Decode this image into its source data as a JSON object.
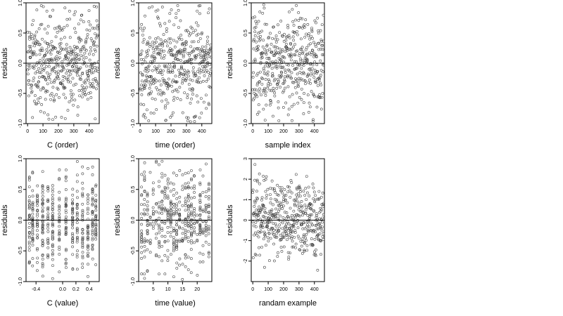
{
  "chart_data": [
    {
      "type": "scatter",
      "xlabel": "C (order)",
      "ylabel": "residuals",
      "xlim": [
        -10,
        465
      ],
      "ylim": [
        -1.0,
        1.0
      ],
      "xticks": [
        0,
        100,
        200,
        300,
        400
      ],
      "yticks": [
        -1.0,
        -0.5,
        0.0,
        0.5,
        1.0
      ],
      "ytick_labels": [
        "-1.0",
        "-0.5",
        "0.0",
        "0.5",
        "1.0"
      ],
      "hline": 0,
      "points": {
        "n": 460,
        "x": [
          0,
          460
        ],
        "pattern": "index",
        "seed": 11,
        "ampY": 0.42
      }
    },
    {
      "type": "scatter",
      "xlabel": "time (order)",
      "ylabel": "residuals",
      "xlim": [
        -10,
        465
      ],
      "ylim": [
        -1.0,
        1.0
      ],
      "xticks": [
        0,
        100,
        200,
        300,
        400
      ],
      "yticks": [
        -1.0,
        -0.5,
        0.0,
        0.5,
        1.0
      ],
      "ytick_labels": [
        "-1.0",
        "-0.5",
        "0.0",
        "0.5",
        "1.0"
      ],
      "hline": 0,
      "points": {
        "n": 460,
        "x": [
          0,
          460
        ],
        "pattern": "index",
        "seed": 23,
        "ampY": 0.42
      }
    },
    {
      "type": "scatter",
      "xlabel": "sample index",
      "ylabel": "residuals",
      "xlim": [
        -10,
        465
      ],
      "ylim": [
        -1.0,
        1.0
      ],
      "xticks": [
        0,
        100,
        200,
        300,
        400
      ],
      "yticks": [
        -1.0,
        -0.5,
        0.0,
        0.5,
        1.0
      ],
      "ytick_labels": [
        "-1.0",
        "-0.5",
        "0.0",
        "0.5",
        "1.0"
      ],
      "hline": 0,
      "points": {
        "n": 460,
        "x": [
          0,
          460
        ],
        "pattern": "index",
        "seed": 37,
        "ampY": 0.42
      }
    },
    {
      "type": "scatter",
      "xlabel": "C (value)",
      "ylabel": "residuals",
      "xlim": [
        -0.55,
        0.55
      ],
      "ylim": [
        -1.0,
        1.0
      ],
      "xticks": [
        -0.4,
        0.0,
        0.2,
        0.4
      ],
      "xtick_labels": [
        "-0.4",
        "0.0",
        "0.2",
        "0.4"
      ],
      "yticks": [
        -1.0,
        -0.5,
        0.0,
        0.5,
        1.0
      ],
      "ytick_labels": [
        "-1.0",
        "-0.5",
        "0.0",
        "0.5",
        "1.0"
      ],
      "hline": 0,
      "points": {
        "n": 460,
        "x": [
          -0.5,
          0.5
        ],
        "pattern": "columns",
        "columns": [
          -0.5,
          -0.45,
          -0.38,
          -0.3,
          -0.22,
          -0.15,
          -0.05,
          0.05,
          0.15,
          0.22,
          0.3,
          0.38,
          0.45,
          0.5
        ],
        "seed": 53,
        "ampY": 0.42
      }
    },
    {
      "type": "scatter",
      "xlabel": "time (value)",
      "ylabel": "residuals",
      "xlim": [
        0,
        25
      ],
      "ylim": [
        -1.0,
        1.0
      ],
      "xticks": [
        5,
        10,
        15,
        20
      ],
      "yticks": [
        -1.0,
        -0.5,
        0.0,
        0.5,
        1.0
      ],
      "ytick_labels": [
        "-1.0",
        "-0.5",
        "0.0",
        "0.5",
        "1.0"
      ],
      "hline": 0,
      "points": {
        "n": 460,
        "x": [
          1,
          24
        ],
        "pattern": "columns",
        "columns": [
          1,
          2,
          3,
          4,
          5,
          6,
          7,
          8,
          9,
          10,
          11,
          12,
          13,
          14,
          15,
          16,
          17,
          18,
          19,
          20,
          21,
          22,
          23,
          24
        ],
        "seed": 71,
        "ampY": 0.42
      }
    },
    {
      "type": "scatter",
      "xlabel": "randam example",
      "ylabel": "residuals",
      "xlim": [
        -10,
        465
      ],
      "ylim": [
        -3.0,
        3.0
      ],
      "xticks": [
        0,
        100,
        200,
        300,
        400
      ],
      "yticks": [
        -2,
        -1,
        0,
        1,
        2,
        3
      ],
      "ytick_labels": [
        "-2",
        "-1",
        "0",
        "1",
        "2",
        "3"
      ],
      "hline": 0,
      "points": {
        "n": 460,
        "x": [
          0,
          460
        ],
        "pattern": "index",
        "seed": 97,
        "ampY": 1.0
      }
    }
  ]
}
